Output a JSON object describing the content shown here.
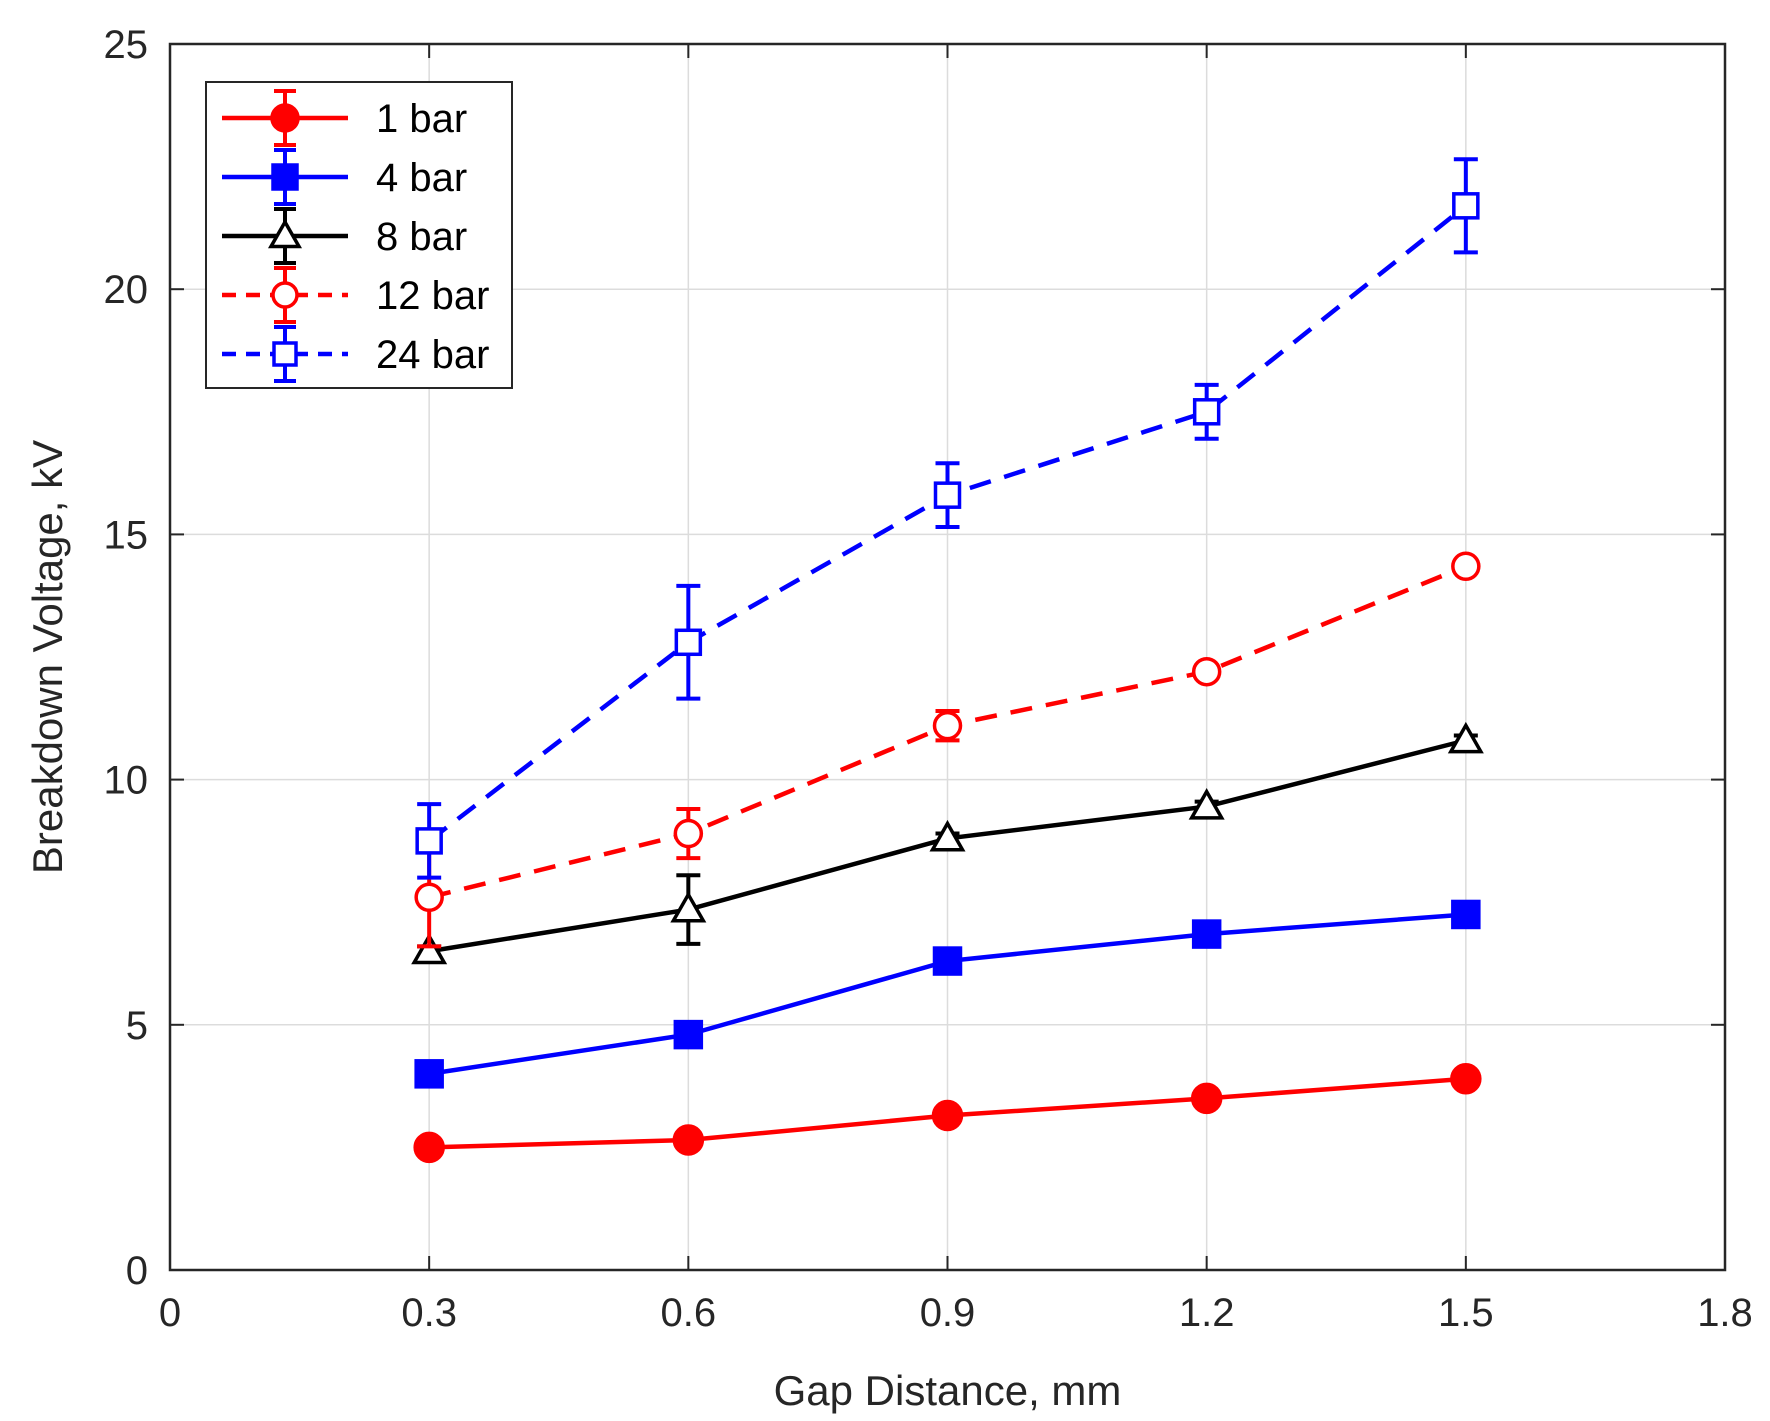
{
  "chart_data": {
    "type": "line",
    "title": "",
    "xlabel": "Gap Distance, mm",
    "ylabel": "Breakdown Voltage, kV",
    "xlim": [
      0,
      1.8
    ],
    "ylim": [
      0,
      25
    ],
    "xticks": [
      0,
      0.3,
      0.6,
      0.9,
      1.2,
      1.5,
      1.8
    ],
    "xtick_labels": [
      "0",
      "0.3",
      "0.6",
      "0.9",
      "1.2",
      "1.5",
      "1.8"
    ],
    "yticks": [
      0,
      5,
      10,
      15,
      20,
      25
    ],
    "ytick_labels": [
      "0",
      "5",
      "10",
      "15",
      "20",
      "25"
    ],
    "grid": true,
    "legend_position": "top-left",
    "x": [
      0.3,
      0.6,
      0.9,
      1.2,
      1.5
    ],
    "series": [
      {
        "name": "1 bar",
        "color": "#ff0000",
        "line": "solid",
        "marker": "circle",
        "filled": true,
        "values": [
          2.5,
          2.65,
          3.15,
          3.5,
          3.9
        ],
        "errors": [
          0.05,
          0.05,
          0.05,
          0.1,
          0.05
        ]
      },
      {
        "name": "4 bar",
        "color": "#0000ff",
        "line": "solid",
        "marker": "square",
        "filled": true,
        "values": [
          4.0,
          4.8,
          6.3,
          6.85,
          7.25
        ],
        "errors": [
          0.05,
          0.15,
          0.05,
          0.05,
          0.1
        ]
      },
      {
        "name": "8 bar",
        "color": "#000000",
        "line": "solid",
        "marker": "triangle",
        "filled": false,
        "values": [
          6.5,
          7.35,
          8.8,
          9.45,
          10.8
        ],
        "errors": [
          0.1,
          0.7,
          0.1,
          0.1,
          0.1
        ]
      },
      {
        "name": "12 bar",
        "color": "#ff0000",
        "line": "dashed",
        "marker": "circle",
        "filled": false,
        "values": [
          7.6,
          8.9,
          11.1,
          12.2,
          14.35
        ],
        "errors": [
          1.0,
          0.5,
          0.3,
          0.1,
          0.1
        ]
      },
      {
        "name": "24 bar",
        "color": "#0000ff",
        "line": "dashed",
        "marker": "square",
        "filled": false,
        "values": [
          8.75,
          12.8,
          15.8,
          17.5,
          21.7
        ],
        "errors": [
          0.75,
          1.15,
          0.65,
          0.55,
          0.95
        ]
      }
    ]
  }
}
